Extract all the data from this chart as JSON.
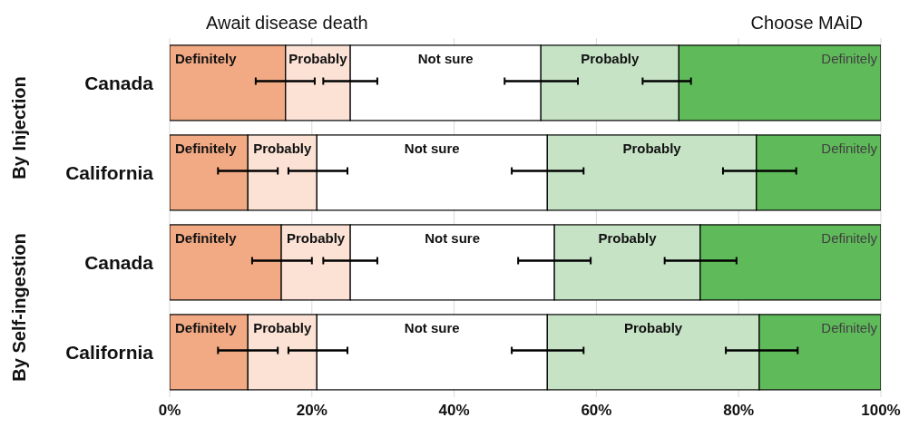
{
  "chart_data": {
    "type": "bar",
    "orientation": "horizontal",
    "stacked": true,
    "categories": [
      "Canada",
      "California",
      "Canada",
      "California"
    ],
    "series": [
      {
        "name": "Definitely",
        "color": "#f2aa84",
        "values": [
          16.3,
          11.0,
          15.7,
          11.0
        ],
        "errors": [
          [
            12.1,
            20.4
          ],
          [
            6.8,
            15.2
          ],
          [
            11.6,
            20.0
          ],
          [
            6.8,
            15.2
          ]
        ]
      },
      {
        "name": "Probably",
        "color": "#fbe2d5",
        "values": [
          9.1,
          9.7,
          9.7,
          9.7
        ],
        "errors": [
          [
            21.6,
            29.2
          ],
          [
            16.7,
            25.0
          ],
          [
            21.6,
            29.2
          ],
          [
            16.7,
            25.0
          ]
        ]
      },
      {
        "name": "Not sure",
        "color": "#ffffff",
        "values": [
          26.8,
          32.4,
          28.7,
          32.4
        ],
        "errors": [
          [
            47.1,
            57.4
          ],
          [
            48.1,
            58.2
          ],
          [
            49.0,
            59.2
          ],
          [
            48.1,
            58.2
          ]
        ]
      },
      {
        "name": "Probably",
        "color": "#c6e3c6",
        "values": [
          19.4,
          29.4,
          20.5,
          29.8
        ],
        "errors": [
          [
            66.5,
            73.3
          ],
          [
            77.8,
            88.1
          ],
          [
            69.6,
            79.7
          ],
          [
            78.2,
            88.3
          ]
        ]
      },
      {
        "name": "Definitely",
        "color": "#5fba5a",
        "values": [
          28.4,
          17.5,
          25.4,
          17.1
        ]
      }
    ],
    "xlim": [
      0,
      100
    ],
    "xticks": [
      {
        "value": 0,
        "label": "0%"
      },
      {
        "value": 20,
        "label": "20%"
      },
      {
        "value": 40,
        "label": "40%"
      },
      {
        "value": 60,
        "label": "60%"
      },
      {
        "value": 80,
        "label": "80%"
      },
      {
        "value": 100,
        "label": "100%"
      }
    ],
    "grid": "x",
    "annotations": [
      "Await disease death",
      "Choose MAiD",
      "By Injection",
      "By Self-ingestion"
    ]
  }
}
